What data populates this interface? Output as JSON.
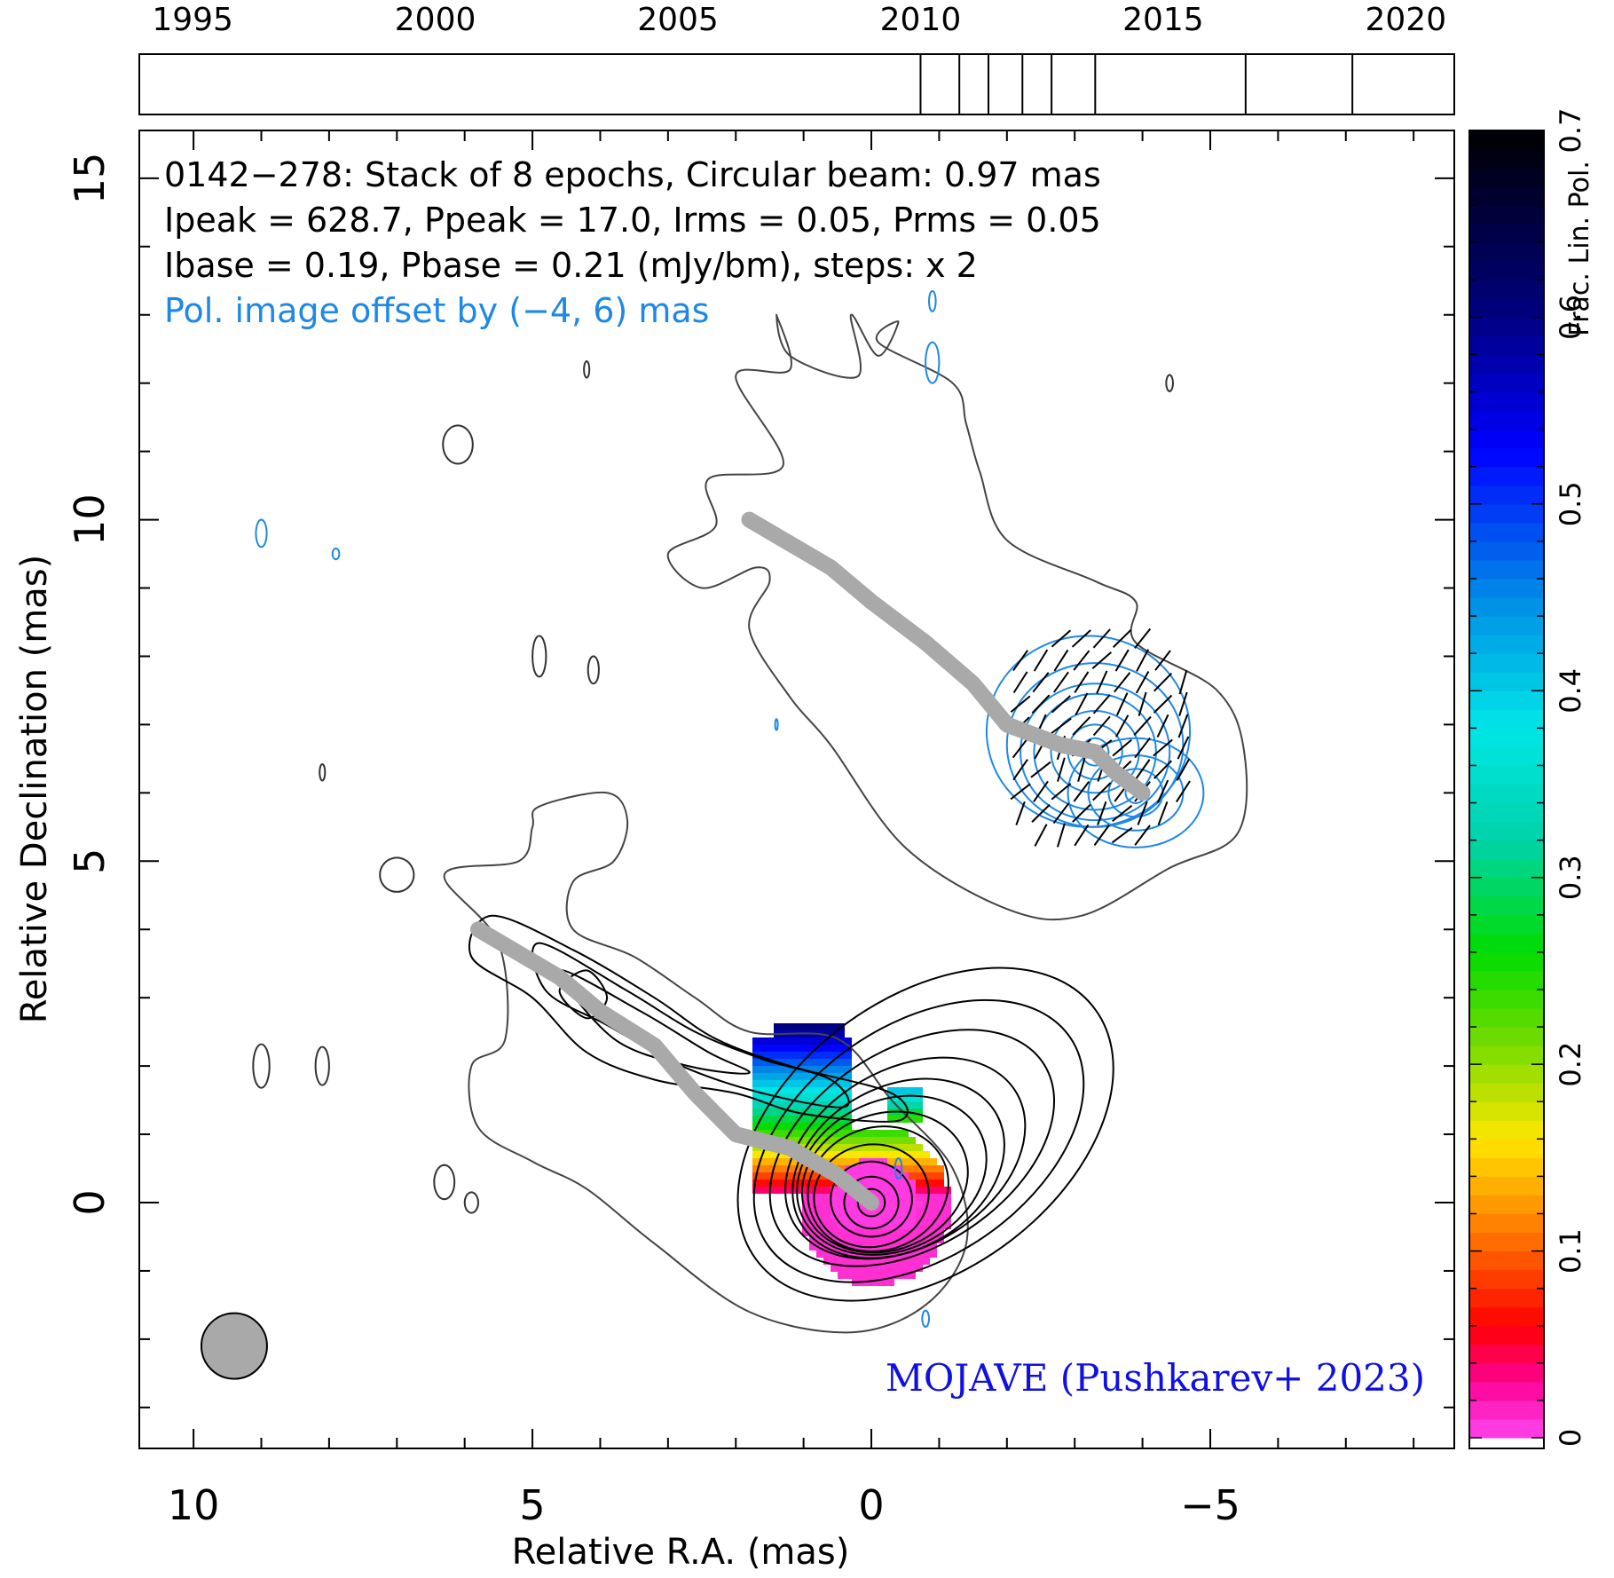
{
  "chart_data": {
    "type": "contour",
    "source": "0142−278",
    "annotations": {
      "line1": "0142−278: Stack of 8 epochs, Circular beam: 0.97 mas",
      "line2": "Ipeak = 628.7, Ppeak = 17.0, Irms = 0.05, Prms = 0.05",
      "line3": "Ibase = 0.19, Pbase = 0.21 (mJy/bm), steps: x 2",
      "line4": "Pol. image offset by (−4, 6) mas",
      "credit": "MOJAVE (Pushkarev+ 2023)"
    },
    "xlabel": "Relative R.A. (mas)",
    "ylabel": "Relative Declination (mas)",
    "xlim": [
      10.8,
      -8.6
    ],
    "ylim": [
      -3.6,
      15.7
    ],
    "x_ticks": [
      10,
      5,
      0,
      -5
    ],
    "x_tick_labels": [
      "10",
      "5",
      "0",
      "−5"
    ],
    "y_ticks": [
      0,
      5,
      10,
      15
    ],
    "y_tick_labels": [
      "0",
      "5",
      "10",
      "15"
    ],
    "timeline": {
      "range": [
        1993.9,
        2021.0
      ],
      "tick_years": [
        1995,
        2000,
        2005,
        2010,
        2015,
        2020
      ],
      "tick_labels": [
        "1995",
        "2000",
        "2005",
        "2010",
        "2015",
        "2020"
      ],
      "epochs": [
        2010.0,
        2010.8,
        2011.4,
        2012.1,
        2012.7,
        2013.6,
        2016.7,
        2018.9
      ]
    },
    "colorbar": {
      "label": "Frac. Lin. Pol.",
      "range": [
        0,
        0.7
      ],
      "ticks": [
        0,
        0.1,
        0.2,
        0.3,
        0.4,
        0.5,
        0.6,
        0.7
      ],
      "tick_labels": [
        "0",
        "0.1",
        "0.2",
        "0.3",
        "0.4",
        "0.5",
        "0.6",
        "0.7"
      ]
    },
    "ridge_line": [
      [
        5.8,
        4.0
      ],
      [
        4.6,
        3.3
      ],
      [
        4.0,
        2.8
      ],
      [
        3.2,
        2.3
      ],
      [
        2.6,
        1.6
      ],
      [
        2.0,
        1.0
      ],
      [
        1.2,
        0.8
      ],
      [
        0.5,
        0.4
      ],
      [
        0.0,
        0.0
      ]
    ],
    "pol_ridge_line": [
      [
        1.8,
        10.0
      ],
      [
        0.6,
        9.3
      ],
      [
        0.0,
        8.8
      ],
      [
        -0.8,
        8.2
      ],
      [
        -1.5,
        7.6
      ],
      [
        -2.0,
        7.0
      ],
      [
        -2.8,
        6.7
      ],
      [
        -3.3,
        6.6
      ],
      [
        -3.6,
        6.3
      ],
      [
        -4.0,
        6.0
      ]
    ],
    "beam": {
      "x": 9.4,
      "y": -2.1,
      "diameter_mas": 0.97
    },
    "colors": {
      "contour": "#000000",
      "pol_contour": "#1e88e5",
      "ridge": "#a9a9a9",
      "credit": "#1010e0"
    }
  }
}
